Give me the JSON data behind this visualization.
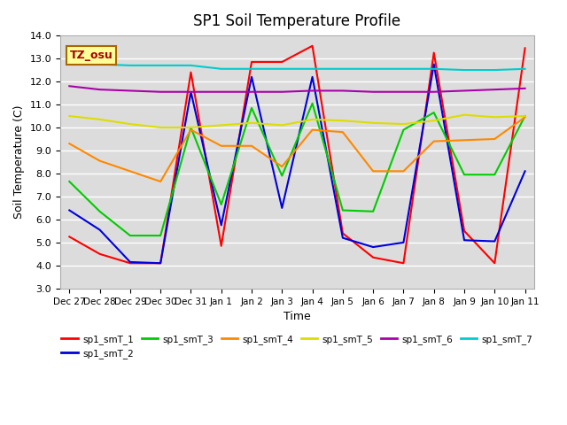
{
  "title": "SP1 Soil Temperature Profile",
  "xlabel": "Time",
  "ylabel": "Soil Temperature (C)",
  "ylim": [
    3.0,
    14.0
  ],
  "yticks": [
    3.0,
    4.0,
    5.0,
    6.0,
    7.0,
    8.0,
    9.0,
    10.0,
    11.0,
    12.0,
    13.0,
    14.0
  ],
  "bg_color": "#dcdcdc",
  "annotation_text": "TZ_osu",
  "annotation_bg": "#ffff99",
  "annotation_border": "#aa6600",
  "annotation_text_color": "#aa0000",
  "series_order": [
    "sp1_smT_1",
    "sp1_smT_2",
    "sp1_smT_3",
    "sp1_smT_4",
    "sp1_smT_5",
    "sp1_smT_6",
    "sp1_smT_7"
  ],
  "series": {
    "sp1_smT_1": {
      "color": "#ff0000",
      "values": [
        5.25,
        4.5,
        4.1,
        4.1,
        12.4,
        4.85,
        12.85,
        12.85,
        13.55,
        5.4,
        4.35,
        4.1,
        13.25,
        5.5,
        4.1,
        13.45
      ]
    },
    "sp1_smT_2": {
      "color": "#0000dd",
      "values": [
        6.4,
        5.55,
        4.15,
        4.1,
        11.55,
        5.75,
        12.2,
        6.5,
        12.2,
        5.2,
        4.8,
        5.0,
        12.75,
        5.1,
        5.05,
        8.1
      ]
    },
    "sp1_smT_3": {
      "color": "#00cc00",
      "values": [
        7.65,
        6.35,
        5.3,
        5.3,
        10.0,
        6.65,
        10.85,
        7.9,
        11.05,
        6.4,
        6.35,
        9.9,
        10.65,
        7.95,
        7.95,
        10.5
      ]
    },
    "sp1_smT_4": {
      "color": "#ff8800",
      "values": [
        9.3,
        8.55,
        8.1,
        7.65,
        9.9,
        9.2,
        9.2,
        8.3,
        9.9,
        9.8,
        8.1,
        8.1,
        9.4,
        9.45,
        9.5,
        10.45
      ]
    },
    "sp1_smT_5": {
      "color": "#dddd00",
      "values": [
        10.5,
        10.35,
        10.15,
        10.0,
        10.0,
        10.1,
        10.2,
        10.1,
        10.35,
        10.3,
        10.2,
        10.15,
        10.3,
        10.55,
        10.45,
        10.5
      ]
    },
    "sp1_smT_6": {
      "color": "#aa00aa",
      "values": [
        11.8,
        11.65,
        11.6,
        11.55,
        11.55,
        11.55,
        11.55,
        11.55,
        11.6,
        11.6,
        11.55,
        11.55,
        11.55,
        11.6,
        11.65,
        11.7
      ]
    },
    "sp1_smT_7": {
      "color": "#00cccc",
      "values": [
        12.9,
        12.75,
        12.7,
        12.7,
        12.7,
        12.55,
        12.55,
        12.55,
        12.55,
        12.55,
        12.55,
        12.55,
        12.55,
        12.5,
        12.5,
        12.55
      ]
    }
  },
  "xtick_labels": [
    "Dec 27",
    "Dec 28",
    "Dec 29",
    "Dec 30",
    "Dec 31",
    "Jan 1",
    "Jan 2",
    "Jan 3",
    "Jan 4",
    "Jan 5",
    "Jan 6",
    "Jan 7",
    "Jan 8",
    "Jan 9",
    "Jan 10",
    "Jan 11"
  ]
}
